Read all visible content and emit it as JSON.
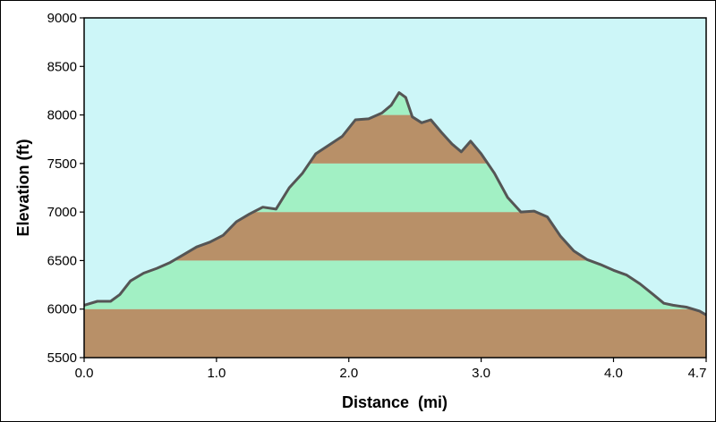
{
  "chart_data": {
    "type": "area",
    "title": "",
    "xlabel": "Distance  (mi)",
    "ylabel": "Elevation (ft)",
    "xlim": [
      0,
      4.7
    ],
    "ylim": [
      5500,
      9000
    ],
    "x_ticks": [
      0.0,
      1.0,
      2.0,
      3.0,
      4.0,
      4.7
    ],
    "x_tick_labels": [
      "0.0",
      "1.0",
      "2.0",
      "3.0",
      "4.0",
      "4.7"
    ],
    "y_ticks": [
      5500,
      6000,
      6500,
      7000,
      7500,
      8000,
      8500,
      9000
    ],
    "y_tick_labels": [
      "5500",
      "6000",
      "6500",
      "7000",
      "7500",
      "8000",
      "8500",
      "9000"
    ],
    "band_step": 500,
    "colors": {
      "sky": "#cdf6f8",
      "band_dark": "#b89068",
      "band_light": "#a2f0c4",
      "profile_line": "#555555"
    },
    "series": [
      {
        "x": [
          0.0,
          0.1,
          0.2,
          0.27,
          0.35,
          0.45,
          0.55,
          0.65,
          0.75,
          0.85,
          0.95,
          1.05,
          1.15,
          1.25,
          1.35,
          1.45,
          1.55,
          1.65,
          1.75,
          1.85,
          1.95,
          2.05,
          2.15,
          2.25,
          2.32,
          2.38,
          2.43,
          2.48,
          2.55,
          2.62,
          2.7,
          2.78,
          2.85,
          2.92,
          3.0,
          3.1,
          3.2,
          3.3,
          3.4,
          3.5,
          3.6,
          3.7,
          3.8,
          3.9,
          4.0,
          4.1,
          4.2,
          4.3,
          4.38,
          4.45,
          4.55,
          4.65,
          4.7
        ],
        "y": [
          6040,
          6080,
          6080,
          6150,
          6290,
          6370,
          6420,
          6480,
          6560,
          6640,
          6690,
          6760,
          6900,
          6980,
          7050,
          7030,
          7250,
          7400,
          7600,
          7690,
          7780,
          7950,
          7960,
          8020,
          8100,
          8230,
          8180,
          7980,
          7920,
          7950,
          7820,
          7700,
          7620,
          7730,
          7600,
          7400,
          7150,
          7000,
          7010,
          6950,
          6750,
          6600,
          6510,
          6460,
          6400,
          6350,
          6260,
          6150,
          6060,
          6040,
          6020,
          5980,
          5940
        ]
      }
    ]
  }
}
